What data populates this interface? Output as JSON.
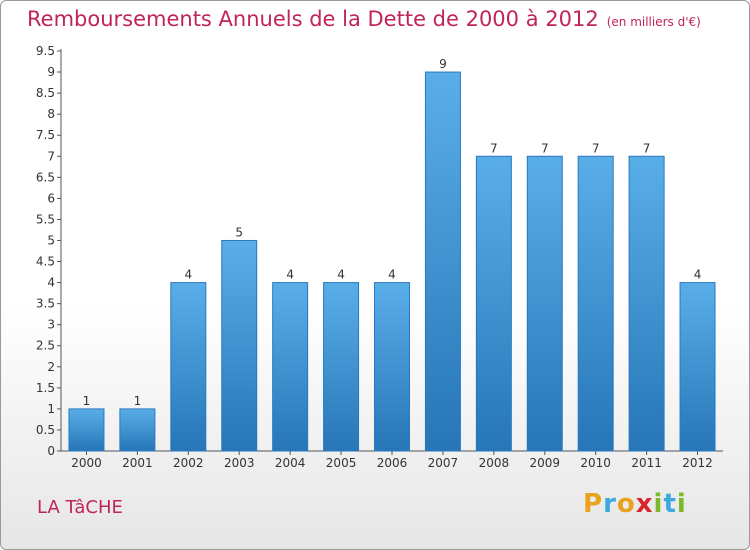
{
  "title": "Remboursements Annuels de la Dette de 2000 à 2012",
  "subtitle": "(en milliers d'€)",
  "location": "LA TâCHE",
  "logo": {
    "letters": [
      "P",
      "r",
      "o",
      "x",
      "i",
      "t",
      "i"
    ],
    "colors": [
      "#e8a21c",
      "#3aa9e0",
      "#e8a21c",
      "#d8262c",
      "#7ab929",
      "#3aa9e0",
      "#7ab929"
    ]
  },
  "colors": {
    "bar": "#3b8fd6",
    "title": "#c0245a"
  },
  "chart_data": {
    "type": "bar",
    "categories": [
      "2000",
      "2001",
      "2002",
      "2003",
      "2004",
      "2005",
      "2006",
      "2007",
      "2008",
      "2009",
      "2010",
      "2011",
      "2012"
    ],
    "values": [
      1,
      1,
      4,
      5,
      4,
      4,
      4,
      9,
      7,
      7,
      7,
      7,
      4
    ],
    "ylim": [
      0,
      9.5
    ],
    "yticks": [
      "0",
      "0.5",
      "1",
      "1.5",
      "2",
      "2.5",
      "3",
      "3.5",
      "4",
      "4.5",
      "5",
      "5.5",
      "6",
      "6.5",
      "7",
      "7.5",
      "8",
      "8.5",
      "9",
      "9.5"
    ],
    "grid": false
  }
}
